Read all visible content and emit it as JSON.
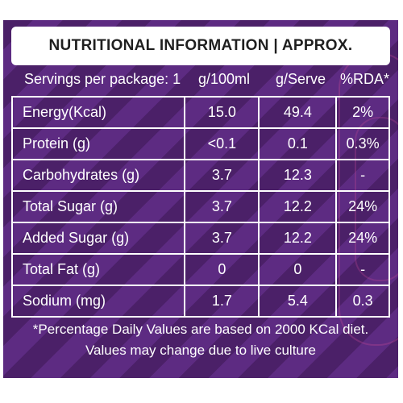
{
  "title": "NUTRITIONAL INFORMATION | APPROX.",
  "header": {
    "servings": "Servings per package: 1",
    "col1": "g/100ml",
    "col2": "g/Serve",
    "col3": "%RDA*"
  },
  "rows": [
    {
      "nutrient": "Energy(Kcal)",
      "per100": "15.0",
      "perServe": "49.4",
      "rda": "2%"
    },
    {
      "nutrient": "Protein (g)",
      "per100": "<0.1",
      "perServe": "0.1",
      "rda": "0.3%"
    },
    {
      "nutrient": "Carbohydrates (g)",
      "per100": "3.7",
      "perServe": "12.3",
      "rda": "-"
    },
    {
      "nutrient": "Total Sugar (g)",
      "per100": "3.7",
      "perServe": "12.2",
      "rda": "24%"
    },
    {
      "nutrient": "Added Sugar (g)",
      "per100": "3.7",
      "perServe": "12.2",
      "rda": "24%"
    },
    {
      "nutrient": "Total Fat (g)",
      "per100": "0",
      "perServe": "0",
      "rda": "-"
    },
    {
      "nutrient": "Sodium (mg)",
      "per100": "1.7",
      "perServe": "5.4",
      "rda": "0.3"
    }
  ],
  "footer": {
    "line1": "*Percentage Daily Values are based on 2000 KCal diet.",
    "line2": "Values may change due to live culture"
  },
  "colors": {
    "panel_dark": "#4b2068",
    "panel_light": "#5d2b82",
    "text": "#ffffff",
    "title_text": "#1f1f1f"
  }
}
